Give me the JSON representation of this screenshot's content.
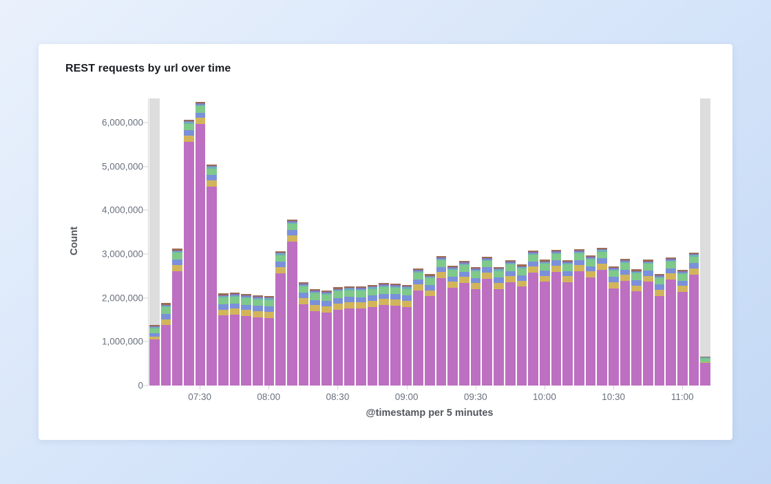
{
  "chart_data": {
    "type": "bar",
    "stacked": true,
    "title": "REST requests by url over time",
    "xlabel": "@timestamp per 5 minutes",
    "ylabel": "Count",
    "legend_visible": false,
    "grid": false,
    "y_tick_labels": [
      "0",
      "1,000,000",
      "2,000,000",
      "3,000,000",
      "4,000,000",
      "5,000,000",
      "6,000,000"
    ],
    "y_tick_values_m": [
      0,
      1,
      2,
      3,
      4,
      5,
      6
    ],
    "y_max_m": 6.55,
    "x_tick_labels": [
      "07:30",
      "08:00",
      "08:30",
      "09:00",
      "09:30",
      "10:00",
      "10:30",
      "11:00"
    ],
    "x_tick_bucket_indices": [
      4,
      10,
      16,
      22,
      28,
      34,
      40,
      46
    ],
    "bucket_minutes": 5,
    "bucket_count": 49,
    "bucket_times": [
      "07:10",
      "07:15",
      "07:20",
      "07:25",
      "07:30",
      "07:35",
      "07:40",
      "07:45",
      "07:50",
      "07:55",
      "08:00",
      "08:05",
      "08:10",
      "08:15",
      "08:20",
      "08:25",
      "08:30",
      "08:35",
      "08:40",
      "08:45",
      "08:50",
      "08:55",
      "09:00",
      "09:05",
      "09:10",
      "09:15",
      "09:20",
      "09:25",
      "09:30",
      "09:35",
      "09:40",
      "09:45",
      "09:50",
      "09:55",
      "10:00",
      "10:05",
      "10:10",
      "10:15",
      "10:20",
      "10:25",
      "10:30",
      "10:35",
      "10:40",
      "10:45",
      "10:50",
      "10:55",
      "11:00",
      "11:05",
      "11:10"
    ],
    "partial_bucket_indices": [
      0,
      48
    ],
    "partial_bucket_color": "#dddddd",
    "totals_m": [
      1.4,
      1.88,
      3.12,
      6.07,
      6.47,
      5.05,
      2.1,
      2.12,
      2.09,
      2.06,
      2.05,
      3.07,
      3.79,
      2.36,
      2.2,
      2.17,
      2.24,
      2.27,
      2.26,
      2.3,
      2.34,
      2.33,
      2.3,
      2.67,
      2.54,
      2.95,
      2.73,
      2.84,
      2.7,
      2.94,
      2.71,
      2.86,
      2.76,
      3.08,
      2.87,
      3.1,
      2.86,
      3.11,
      2.97,
      3.15,
      2.72,
      2.89,
      2.65,
      2.87,
      2.55,
      2.92,
      2.64,
      3.04,
      0.65
    ],
    "series": [
      {
        "name": "magenta",
        "color": "#bd6fc1",
        "values_m": [
          1.06,
          1.375,
          2.615,
          5.565,
          5.965,
          4.545,
          1.595,
          1.615,
          1.585,
          1.555,
          1.545,
          2.565,
          3.285,
          1.855,
          1.695,
          1.665,
          1.735,
          1.765,
          1.755,
          1.795,
          1.835,
          1.825,
          1.795,
          2.165,
          2.035,
          2.445,
          2.225,
          2.335,
          2.195,
          2.435,
          2.205,
          2.355,
          2.255,
          2.575,
          2.365,
          2.595,
          2.355,
          2.605,
          2.465,
          2.645,
          2.215,
          2.385,
          2.145,
          2.365,
          2.045,
          2.415,
          2.135,
          2.535,
          0.52
        ]
      },
      {
        "name": "yellow",
        "color": "#d2b55b",
        "values_m": [
          0.06,
          0.14,
          0.14,
          0.14,
          0.14,
          0.14,
          0.14,
          0.14,
          0.14,
          0.14,
          0.14,
          0.14,
          0.14,
          0.14,
          0.14,
          0.14,
          0.14,
          0.14,
          0.14,
          0.14,
          0.14,
          0.14,
          0.14,
          0.14,
          0.14,
          0.14,
          0.14,
          0.14,
          0.14,
          0.14,
          0.14,
          0.14,
          0.14,
          0.14,
          0.14,
          0.14,
          0.14,
          0.14,
          0.14,
          0.14,
          0.14,
          0.14,
          0.14,
          0.14,
          0.14,
          0.14,
          0.14,
          0.14,
          0.01
        ]
      },
      {
        "name": "blue",
        "color": "#7b90da",
        "values_m": [
          0.08,
          0.12,
          0.12,
          0.12,
          0.12,
          0.12,
          0.12,
          0.12,
          0.12,
          0.12,
          0.12,
          0.12,
          0.12,
          0.12,
          0.12,
          0.12,
          0.12,
          0.12,
          0.12,
          0.12,
          0.12,
          0.12,
          0.12,
          0.12,
          0.12,
          0.12,
          0.12,
          0.12,
          0.12,
          0.12,
          0.12,
          0.12,
          0.12,
          0.12,
          0.12,
          0.12,
          0.12,
          0.12,
          0.12,
          0.12,
          0.12,
          0.12,
          0.12,
          0.12,
          0.12,
          0.12,
          0.12,
          0.12,
          0.01
        ]
      },
      {
        "name": "green",
        "color": "#7fc98b",
        "values_m": [
          0.1,
          0.15,
          0.15,
          0.15,
          0.15,
          0.15,
          0.15,
          0.15,
          0.15,
          0.15,
          0.15,
          0.15,
          0.15,
          0.15,
          0.15,
          0.15,
          0.15,
          0.15,
          0.15,
          0.15,
          0.15,
          0.15,
          0.15,
          0.15,
          0.15,
          0.15,
          0.15,
          0.15,
          0.15,
          0.15,
          0.15,
          0.15,
          0.15,
          0.15,
          0.15,
          0.15,
          0.15,
          0.15,
          0.15,
          0.15,
          0.15,
          0.15,
          0.15,
          0.15,
          0.15,
          0.15,
          0.15,
          0.15,
          0.08
        ]
      },
      {
        "name": "teal",
        "color": "#6fb0b8",
        "values_m": [
          0.03,
          0.035,
          0.035,
          0.035,
          0.035,
          0.035,
          0.035,
          0.035,
          0.035,
          0.035,
          0.035,
          0.035,
          0.035,
          0.035,
          0.035,
          0.035,
          0.035,
          0.035,
          0.035,
          0.035,
          0.035,
          0.035,
          0.035,
          0.035,
          0.035,
          0.035,
          0.035,
          0.035,
          0.035,
          0.035,
          0.035,
          0.035,
          0.035,
          0.035,
          0.035,
          0.035,
          0.035,
          0.035,
          0.035,
          0.035,
          0.035,
          0.035,
          0.035,
          0.035,
          0.035,
          0.035,
          0.035,
          0.035,
          0.02
        ]
      },
      {
        "name": "slate-purple",
        "color": "#8377c4",
        "values_m": [
          0.02,
          0.025,
          0.025,
          0.025,
          0.025,
          0.025,
          0.025,
          0.025,
          0.025,
          0.025,
          0.025,
          0.025,
          0.025,
          0.025,
          0.025,
          0.025,
          0.025,
          0.025,
          0.025,
          0.025,
          0.025,
          0.025,
          0.025,
          0.025,
          0.025,
          0.025,
          0.025,
          0.025,
          0.025,
          0.025,
          0.025,
          0.025,
          0.025,
          0.025,
          0.025,
          0.025,
          0.025,
          0.025,
          0.025,
          0.025,
          0.025,
          0.025,
          0.025,
          0.025,
          0.025,
          0.025,
          0.025,
          0.025,
          0.005
        ]
      },
      {
        "name": "brown",
        "color": "#9b6b53",
        "values_m": [
          0.03,
          0.035,
          0.035,
          0.035,
          0.035,
          0.035,
          0.035,
          0.035,
          0.035,
          0.035,
          0.035,
          0.035,
          0.035,
          0.035,
          0.035,
          0.035,
          0.035,
          0.035,
          0.035,
          0.035,
          0.035,
          0.035,
          0.035,
          0.035,
          0.035,
          0.035,
          0.035,
          0.035,
          0.035,
          0.035,
          0.035,
          0.035,
          0.035,
          0.035,
          0.035,
          0.035,
          0.035,
          0.035,
          0.035,
          0.035,
          0.035,
          0.035,
          0.035,
          0.035,
          0.035,
          0.035,
          0.035,
          0.035,
          0.01
        ]
      }
    ],
    "colors": {
      "axis_line": "#d4d8dd",
      "tick_mark": "#cfd3d9",
      "tick_label": "#69707d",
      "axis_title": "#53575e",
      "chart_title": "#1a1c21",
      "card_background": "#ffffff",
      "page_background": "#d9e7fa"
    }
  }
}
